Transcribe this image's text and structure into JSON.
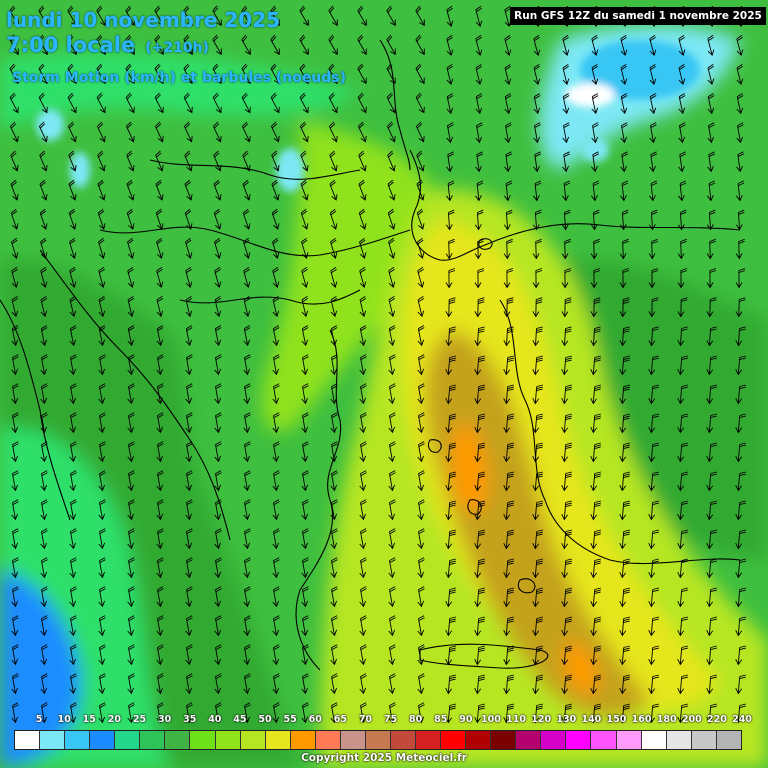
{
  "header": {
    "date_line": "lundi 10 novembre 2025",
    "time_line": "7:00 locale",
    "forecast_hour": "(+210h)",
    "field_title": "Storm Motion (km/h) et barbules (noeuds)",
    "run_info": "Run GFS 12Z du samedi 1 novembre 2025"
  },
  "legend": {
    "labels": [
      "5",
      "10",
      "15",
      "20",
      "25",
      "30",
      "35",
      "40",
      "45",
      "50",
      "55",
      "60",
      "65",
      "70",
      "75",
      "80",
      "85",
      "90",
      "100",
      "110",
      "120",
      "130",
      "140",
      "150",
      "160",
      "180",
      "200",
      "220",
      "240"
    ],
    "colors": [
      "#ffffff",
      "#7de8f5",
      "#38c6f4",
      "#1a8cff",
      "#22d68a",
      "#2fc45a",
      "#3fb444",
      "#6ee01a",
      "#8fe21c",
      "#b6e622",
      "#e6e61e",
      "#ff9900",
      "#ff7a55",
      "#c7938b",
      "#c77a52",
      "#c24a3a",
      "#d42020",
      "#ff0000",
      "#b00000",
      "#7a0000",
      "#b4006e",
      "#d400c8",
      "#ff00ff",
      "#ff55ff",
      "#ff9aff",
      "#ffffff",
      "#e6e6e6",
      "#c8c8c8",
      "#b4b4b4"
    ]
  },
  "map_colors": {
    "base": "#3fbf3f",
    "deep_green": "#33aa33",
    "bright_green": "#2ee06a",
    "lime": "#8fe21c",
    "yellow_green": "#c6e024",
    "yellow": "#e6e61e",
    "olive": "#c4a21c",
    "orange": "#ff9900",
    "blue": "#1a8cff",
    "cyan": "#7de8f5",
    "white": "#ffffff"
  },
  "footer": {
    "copyright": "Copyright 2025 Meteociel.fr"
  }
}
